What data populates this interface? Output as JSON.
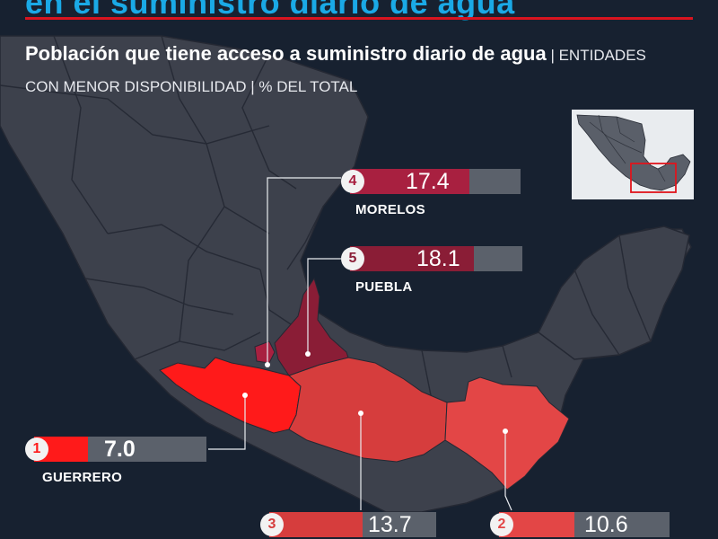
{
  "headline": "en el suministro diario de agua",
  "subtitle": {
    "title": "Población que tiene acceso a suministro diario de agua",
    "sep1": " | ",
    "scope": "ENTIDADES CON MENOR DISPONIBILIDAD",
    "sep2": " | ",
    "unit": "% DEL TOTAL"
  },
  "colors": {
    "background": "#172130",
    "land": "#3d414c",
    "border": "#242833",
    "accent_blue": "#1aa9e6",
    "rule_red": "#d9141f",
    "rank1": "#ff1a1a",
    "rank2": "#e34646",
    "rank3": "#d63d3d",
    "rank4": "#a82040",
    "rank5": "#8a1d36",
    "bar_rest": "#5b616b"
  },
  "chart_data": {
    "type": "bar",
    "title": "Población que tiene acceso a suministro diario de agua",
    "subtitle": "ENTIDADES CON MENOR DISPONIBILIDAD",
    "unit": "% DEL TOTAL",
    "ylim": [
      0,
      100
    ],
    "items": [
      {
        "rank": "1",
        "state": "GUERRERO",
        "value": 7.0,
        "value_label": "7.0",
        "color": "#ff1a1a"
      },
      {
        "rank": "2",
        "state": "",
        "value": 10.6,
        "value_label": "10.6",
        "color": "#e34646"
      },
      {
        "rank": "3",
        "state": "",
        "value": 13.7,
        "value_label": "13.7",
        "color": "#d63d3d"
      },
      {
        "rank": "4",
        "state": "MORELOS",
        "value": 17.4,
        "value_label": "17.4",
        "color": "#a82040"
      },
      {
        "rank": "5",
        "state": "PUEBLA",
        "value": 18.1,
        "value_label": "18.1",
        "color": "#8a1d36"
      }
    ]
  }
}
